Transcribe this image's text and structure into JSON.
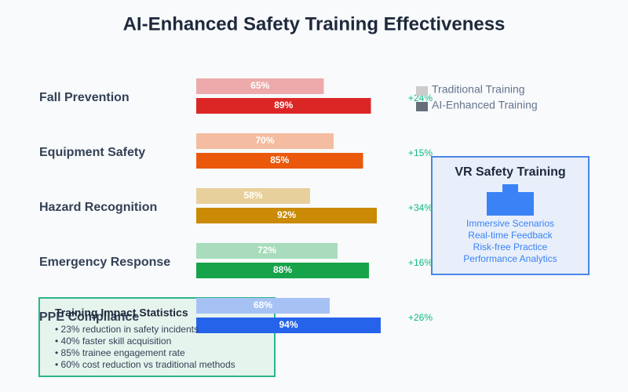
{
  "chart_data": {
    "type": "bar",
    "orientation": "horizontal",
    "title": "AI-Enhanced Safety Training Effectiveness",
    "categories": [
      "Fall Prevention",
      "Equipment Safety",
      "Hazard Recognition",
      "Emergency Response",
      "PPE Compliance"
    ],
    "xlim": [
      0,
      100
    ],
    "series": [
      {
        "name": "Traditional Training",
        "color": "#cccccc",
        "colors": [
          "#eeaaaa",
          "#f4bca0",
          "#e8d09c",
          "#a8dcbc",
          "#a6c2f4"
        ],
        "values": [
          65,
          70,
          58,
          72,
          68
        ],
        "value_labels": [
          "65%",
          "70%",
          "58%",
          "72%",
          "68%"
        ]
      },
      {
        "name": "AI-Enhanced Training",
        "color": "#666e7a",
        "colors": [
          "#dc2626",
          "#ea580c",
          "#ca8a04",
          "#16a34a",
          "#2563eb"
        ],
        "values": [
          89,
          85,
          92,
          88,
          94
        ],
        "value_labels": [
          "89%",
          "85%",
          "92%",
          "88%",
          "94%"
        ]
      }
    ],
    "improvements": [
      "+24%",
      "+15%",
      "+34%",
      "+16%",
      "+26%"
    ],
    "legend": "top-right"
  },
  "vr_panel": {
    "title": "VR Safety Training",
    "items": [
      "Immersive Scenarios",
      "Real-time Feedback",
      "Risk-free Practice",
      "Performance Analytics"
    ]
  },
  "stats_box": {
    "title": "Training Impact Statistics",
    "items": [
      "• 23% reduction in safety incidents",
      "• 40% faster skill acquisition",
      "• 85% trainee engagement rate",
      "• 60% cost reduction vs traditional methods"
    ]
  }
}
